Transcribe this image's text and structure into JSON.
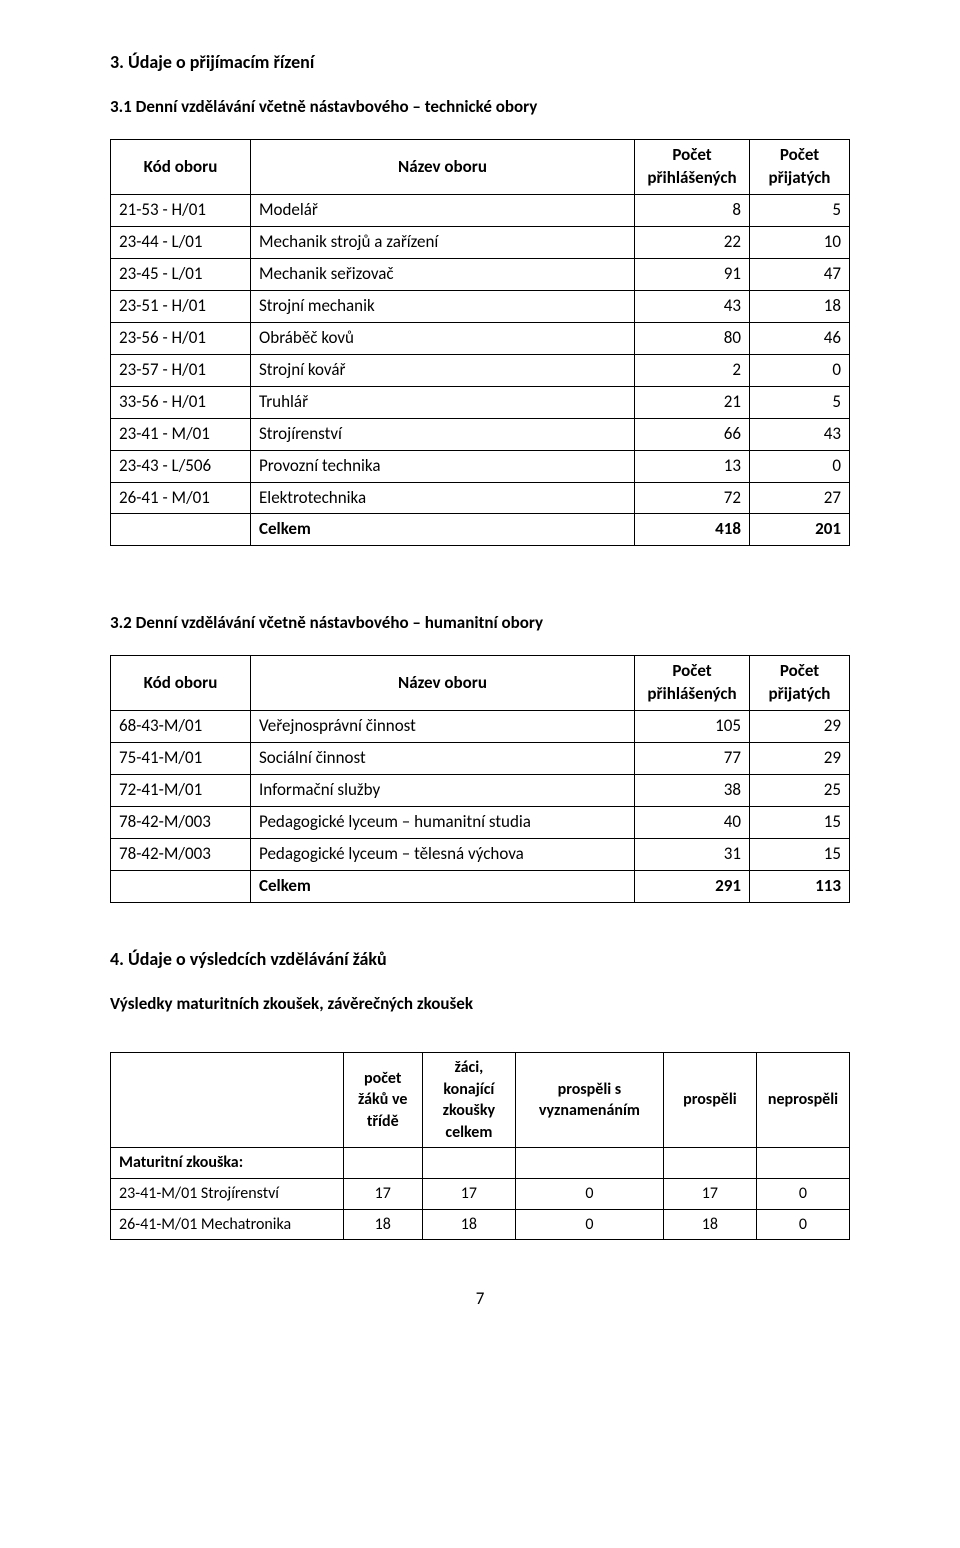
{
  "section3": {
    "heading": "3.  Údaje o přijímacím řízení",
    "sub1": "3.1 Denní vzdělávání včetně nástavbového – technické obory",
    "sub2": "3.2 Denní vzdělávání včetně nástavbového – humanitní obory",
    "headers": {
      "code": "Kód oboru",
      "name": "Název oboru",
      "applied": "Počet přihlášených",
      "accepted": "Počet přijatých"
    },
    "table1": {
      "rows": [
        {
          "code": "21-53 - H/01",
          "name": "Modelář",
          "a": "8",
          "b": "5"
        },
        {
          "code": "23-44 - L/01",
          "name": "Mechanik strojů a zařízení",
          "a": "22",
          "b": "10"
        },
        {
          "code": "23-45 - L/01",
          "name": "Mechanik seřizovač",
          "a": "91",
          "b": "47"
        },
        {
          "code": "23-51 - H/01",
          "name": "Strojní mechanik",
          "a": "43",
          "b": "18"
        },
        {
          "code": "23-56 - H/01",
          "name": "Obráběč kovů",
          "a": "80",
          "b": "46"
        },
        {
          "code": "23-57 - H/01",
          "name": "Strojní kovář",
          "a": "2",
          "b": "0"
        },
        {
          "code": "33-56 - H/01",
          "name": "Truhlář",
          "a": "21",
          "b": "5"
        },
        {
          "code": "23-41 - M/01",
          "name": "Strojírenství",
          "a": "66",
          "b": "43"
        },
        {
          "code": "23-43 - L/506",
          "name": "Provozní technika",
          "a": "13",
          "b": "0"
        },
        {
          "code": "26-41 - M/01",
          "name": "Elektrotechnika",
          "a": "72",
          "b": "27"
        }
      ],
      "total": {
        "label": "Celkem",
        "a": "418",
        "b": "201"
      }
    },
    "table2": {
      "rows": [
        {
          "code": "68-43-M/01",
          "name": "Veřejnosprávní činnost",
          "a": "105",
          "b": "29"
        },
        {
          "code": "75-41-M/01",
          "name": "Sociální činnost",
          "a": "77",
          "b": "29"
        },
        {
          "code": "72-41-M/01",
          "name": "Informační služby",
          "a": "38",
          "b": "25"
        },
        {
          "code": "78-42-M/003",
          "name": "Pedagogické lyceum – humanitní studia",
          "a": "40",
          "b": "15"
        },
        {
          "code": "78-42-M/003",
          "name": "Pedagogické lyceum – tělesná výchova",
          "a": "31",
          "b": "15"
        }
      ],
      "total": {
        "label": "Celkem",
        "a": "291",
        "b": "113"
      }
    }
  },
  "section4": {
    "heading": "4.  Údaje o výsledcích vzdělávání žáků",
    "subtitle": "Výsledky maturitních zkoušek, závěrečných zkoušek",
    "headers": {
      "blank": "",
      "count": "počet žáků ve třídě",
      "taking": "žáci, konající zkoušky celkem",
      "honors": "prospěli s vyznamenáním",
      "passed": "prospěli",
      "failed": "neprospěli"
    },
    "matLabel": "Maturitní zkouška:",
    "rows": [
      {
        "label": "23-41-M/01 Strojírenství",
        "v": [
          "17",
          "17",
          "0",
          "17",
          "0"
        ]
      },
      {
        "label": "26-41-M/01 Mechatronika",
        "v": [
          "18",
          "18",
          "0",
          "18",
          "0"
        ]
      }
    ]
  },
  "pageNumber": "7"
}
